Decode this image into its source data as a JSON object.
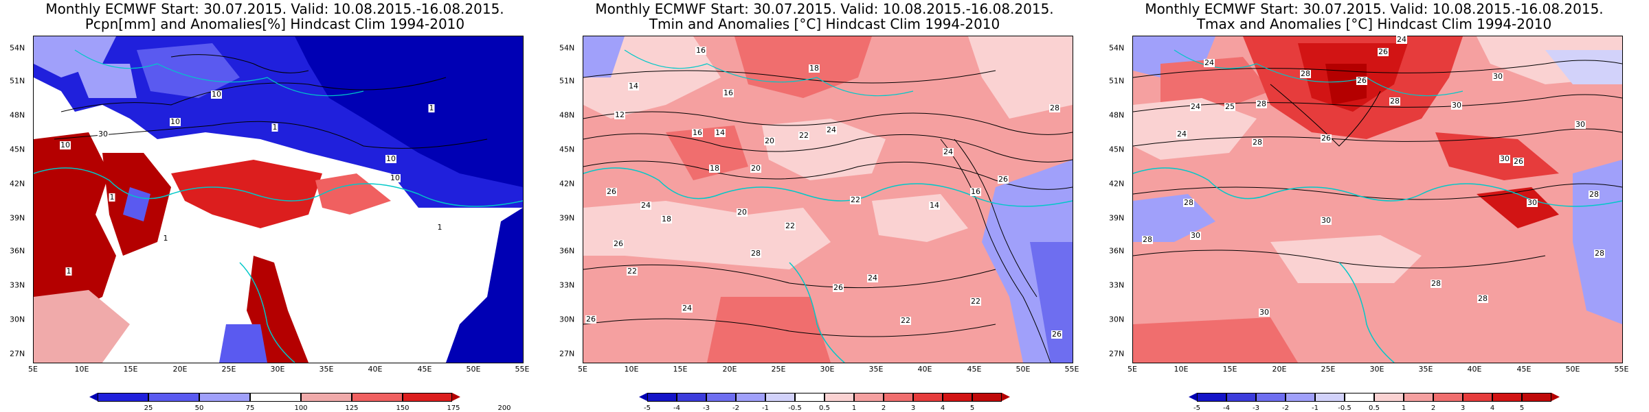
{
  "panels": [
    {
      "title_line1": "Monthly ECMWF Start: 30.07.2015. Valid: 10.08.2015.-16.08.2015.",
      "title_line2": "Pcpn[mm] and Anomalies[%] Hindcast Clim 1994-2010",
      "lat_labels": [
        "54N",
        "51N",
        "48N",
        "45N",
        "42N",
        "39N",
        "36N",
        "33N",
        "30N",
        "27N"
      ],
      "lon_labels": [
        "5E",
        "10E",
        "15E",
        "20E",
        "25E",
        "30E",
        "35E",
        "40E",
        "45E",
        "50E",
        "55E"
      ],
      "colorbar": {
        "labels": [
          "25",
          "50",
          "75",
          "100",
          "125",
          "150",
          "175",
          "200"
        ],
        "colors": [
          "#0000b4",
          "#2020dc",
          "#5a5af0",
          "#a0a0fa",
          "#ffffff",
          "#f0aaaa",
          "#f06060",
          "#dc1e1e",
          "#b40000"
        ]
      },
      "contour_labels": [
        "10",
        "10",
        "30",
        "1",
        "1",
        "10",
        "10",
        "1",
        "1",
        "1",
        "1",
        "10"
      ]
    },
    {
      "title_line1": "Monthly ECMWF Start: 30.07.2015. Valid: 10.08.2015.-16.08.2015.",
      "title_line2": "Tmin and Anomalies [°C] Hindcast Clim 1994-2010",
      "lat_labels": [
        "54N",
        "51N",
        "48N",
        "45N",
        "42N",
        "39N",
        "36N",
        "33N",
        "30N",
        "27N"
      ],
      "lon_labels": [
        "5E",
        "10E",
        "15E",
        "20E",
        "25E",
        "30E",
        "35E",
        "40E",
        "45E",
        "50E",
        "55E"
      ],
      "colorbar": {
        "labels": [
          "-5",
          "-4",
          "-3",
          "-2",
          "-1",
          "-0.5",
          "0.5",
          "1",
          "2",
          "3",
          "4",
          "5"
        ],
        "colors": [
          "#0000b4",
          "#1414c8",
          "#3c3cdc",
          "#6e6ef0",
          "#a0a0fa",
          "#d2d2fa",
          "#ffffff",
          "#fad2d2",
          "#f5a0a0",
          "#f06e6e",
          "#e63c3c",
          "#d21414",
          "#b40000"
        ]
      },
      "contour_labels": [
        "16",
        "18",
        "14",
        "16",
        "12",
        "16",
        "14",
        "20",
        "22",
        "24",
        "18",
        "20",
        "24",
        "26",
        "28",
        "22",
        "24",
        "26",
        "18",
        "20",
        "22",
        "14",
        "16",
        "22",
        "24",
        "26",
        "28",
        "26",
        "22",
        "22",
        "26",
        "24",
        "26"
      ]
    },
    {
      "title_line1": "Monthly ECMWF Start: 30.07.2015. Valid: 10.08.2015.-16.08.2015.",
      "title_line2": "Tmax and Anomalies [°C] Hindcast Clim 1994-2010",
      "lat_labels": [
        "54N",
        "51N",
        "48N",
        "45N",
        "42N",
        "39N",
        "36N",
        "33N",
        "30N",
        "27N"
      ],
      "lon_labels": [
        "5E",
        "10E",
        "15E",
        "20E",
        "25E",
        "30E",
        "35E",
        "40E",
        "45E",
        "50E",
        "55E"
      ],
      "colorbar": {
        "labels": [
          "-5",
          "-4",
          "-3",
          "-2",
          "-1",
          "-0.5",
          "0.5",
          "1",
          "2",
          "3",
          "4",
          "5"
        ],
        "colors": [
          "#0000b4",
          "#1414c8",
          "#3c3cdc",
          "#6e6ef0",
          "#a0a0fa",
          "#d2d2fa",
          "#ffffff",
          "#fad2d2",
          "#f5a0a0",
          "#f06e6e",
          "#e63c3c",
          "#d21414",
          "#b40000"
        ]
      },
      "contour_labels": [
        "24",
        "26",
        "24",
        "28",
        "30",
        "26",
        "24",
        "28",
        "25",
        "28",
        "30",
        "26",
        "24",
        "30",
        "28",
        "30",
        "28",
        "30",
        "26",
        "28",
        "30",
        "28",
        "30",
        "28",
        "30",
        "28",
        "28"
      ]
    }
  ]
}
